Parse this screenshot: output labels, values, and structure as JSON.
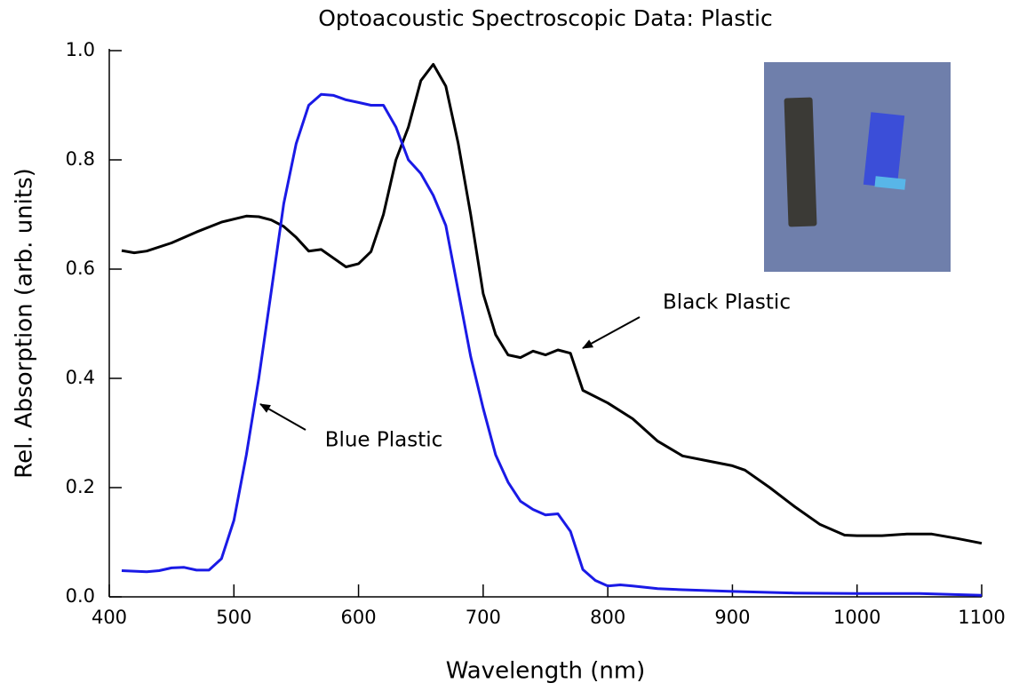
{
  "chart_data": {
    "type": "line",
    "title": "Optoacoustic Spectroscopic Data: Plastic",
    "x_label": "Wavelength (nm)",
    "y_label": "Rel. Absorption (arb. units)",
    "xlim": [
      400,
      1100
    ],
    "ylim": [
      0,
      1
    ],
    "xticks": [
      400,
      500,
      600,
      700,
      800,
      900,
      1000,
      1100
    ],
    "yticks": [
      {
        "value": 0,
        "label": "0.0"
      },
      0.2,
      0.4,
      0.6,
      0.8,
      {
        "value": 1,
        "label": "1.0"
      }
    ],
    "series": [
      {
        "name": "Black Plastic",
        "color": "#000000",
        "x": [
          410,
          420,
          430,
          450,
          470,
          490,
          510,
          520,
          530,
          540,
          550,
          560,
          570,
          580,
          590,
          600,
          610,
          620,
          630,
          640,
          650,
          660,
          670,
          680,
          690,
          700,
          710,
          720,
          730,
          740,
          750,
          760,
          770,
          780,
          800,
          820,
          840,
          860,
          880,
          900,
          910,
          930,
          950,
          970,
          990,
          1000,
          1020,
          1040,
          1060,
          1080,
          1100
        ],
        "values": [
          0.634,
          0.63,
          0.633,
          0.648,
          0.668,
          0.686,
          0.697,
          0.696,
          0.69,
          0.678,
          0.658,
          0.633,
          0.636,
          0.62,
          0.604,
          0.61,
          0.632,
          0.7,
          0.8,
          0.86,
          0.945,
          0.975,
          0.935,
          0.83,
          0.7,
          0.555,
          0.48,
          0.443,
          0.438,
          0.45,
          0.443,
          0.452,
          0.446,
          0.378,
          0.355,
          0.326,
          0.285,
          0.258,
          0.249,
          0.24,
          0.232,
          0.2,
          0.165,
          0.133,
          0.113,
          0.112,
          0.112,
          0.115,
          0.115,
          0.107,
          0.098
        ]
      },
      {
        "name": "Blue Plastic",
        "color": "#1a1ae6",
        "x": [
          410,
          430,
          440,
          450,
          460,
          470,
          480,
          490,
          500,
          510,
          520,
          530,
          540,
          550,
          560,
          570,
          580,
          590,
          600,
          610,
          620,
          630,
          640,
          650,
          660,
          670,
          680,
          690,
          700,
          710,
          720,
          730,
          740,
          750,
          760,
          770,
          780,
          790,
          800,
          810,
          820,
          840,
          860,
          900,
          950,
          1000,
          1050,
          1100
        ],
        "values": [
          0.048,
          0.046,
          0.048,
          0.053,
          0.054,
          0.049,
          0.049,
          0.07,
          0.14,
          0.26,
          0.4,
          0.56,
          0.72,
          0.83,
          0.9,
          0.92,
          0.918,
          0.91,
          0.905,
          0.9,
          0.9,
          0.86,
          0.8,
          0.775,
          0.735,
          0.68,
          0.56,
          0.44,
          0.345,
          0.26,
          0.21,
          0.175,
          0.16,
          0.15,
          0.152,
          0.12,
          0.05,
          0.03,
          0.02,
          0.022,
          0.02,
          0.015,
          0.013,
          0.01,
          0.007,
          0.006,
          0.006,
          0.003
        ]
      }
    ]
  }
}
